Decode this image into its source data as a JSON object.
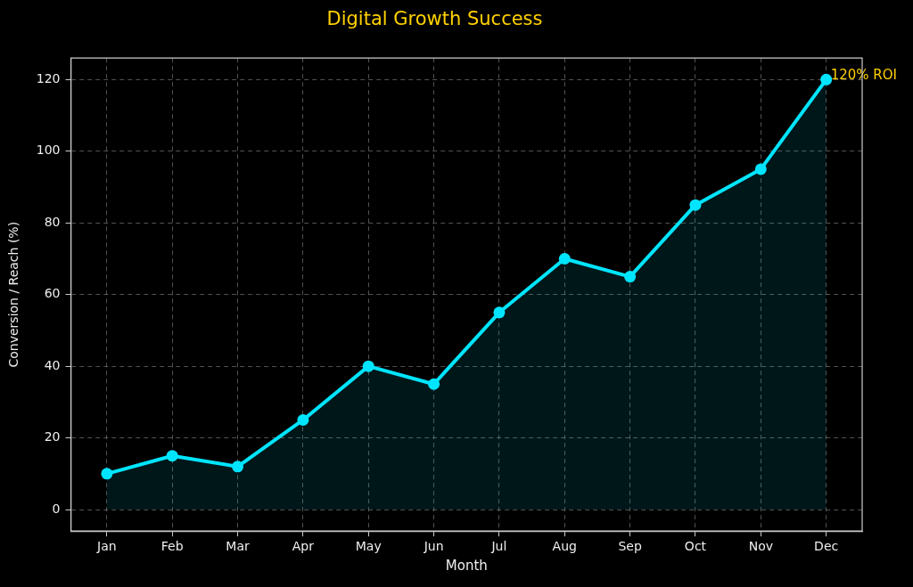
{
  "chart_data": {
    "type": "area",
    "title": "Digital Growth Success",
    "xlabel": "Month",
    "ylabel": "Conversion / Reach (%)",
    "categories": [
      "Jan",
      "Feb",
      "Mar",
      "Apr",
      "May",
      "Jun",
      "Jul",
      "Aug",
      "Sep",
      "Oct",
      "Nov",
      "Dec"
    ],
    "series": [
      {
        "color": "#00e5ff",
        "values": [
          10,
          15,
          12,
          25,
          40,
          35,
          55,
          70,
          65,
          85,
          95,
          120
        ]
      }
    ],
    "ylim": [
      -6,
      126
    ],
    "yticks": [
      0,
      20,
      40,
      60,
      80,
      100,
      120
    ],
    "grid": true,
    "marker": "circle",
    "line_style": "solid",
    "annotations": [
      {
        "text": "120% ROI",
        "x": "Dec",
        "y": 120
      }
    ]
  }
}
